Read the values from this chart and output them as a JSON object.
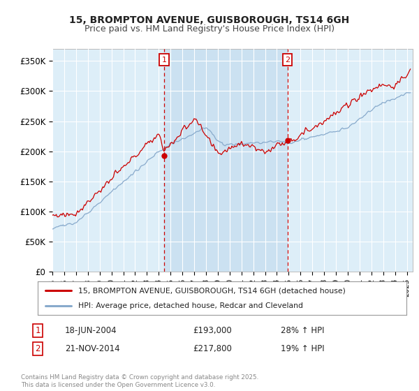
{
  "title": "15, BROMPTON AVENUE, GUISBOROUGH, TS14 6GH",
  "subtitle": "Price paid vs. HM Land Registry's House Price Index (HPI)",
  "ylabel_ticks": [
    "£0",
    "£50K",
    "£100K",
    "£150K",
    "£200K",
    "£250K",
    "£300K",
    "£350K"
  ],
  "ytick_values": [
    0,
    50000,
    100000,
    150000,
    200000,
    250000,
    300000,
    350000
  ],
  "ylim": [
    0,
    370000
  ],
  "xlim_start": 1995.0,
  "xlim_end": 2025.5,
  "sale1_date": 2004.46,
  "sale1_price": 193000,
  "sale1_label": "1",
  "sale1_hpi_text": "28% ↑ HPI",
  "sale1_date_text": "18-JUN-2004",
  "sale2_date": 2014.9,
  "sale2_price": 217800,
  "sale2_label": "2",
  "sale2_hpi_text": "19% ↑ HPI",
  "sale2_date_text": "21-NOV-2014",
  "legend_line1": "15, BROMPTON AVENUE, GUISBOROUGH, TS14 6GH (detached house)",
  "legend_line2": "HPI: Average price, detached house, Redcar and Cleveland",
  "footnote": "Contains HM Land Registry data © Crown copyright and database right 2025.\nThis data is licensed under the Open Government Licence v3.0.",
  "line_color_red": "#cc0000",
  "line_color_blue": "#88aacc",
  "background_color": "#ddeef8",
  "shade_color": "#c8dff0",
  "grid_color": "#ffffff",
  "sale_marker_color": "#cc0000",
  "vline_color": "#cc0000",
  "title_fontsize": 10,
  "subtitle_fontsize": 9
}
